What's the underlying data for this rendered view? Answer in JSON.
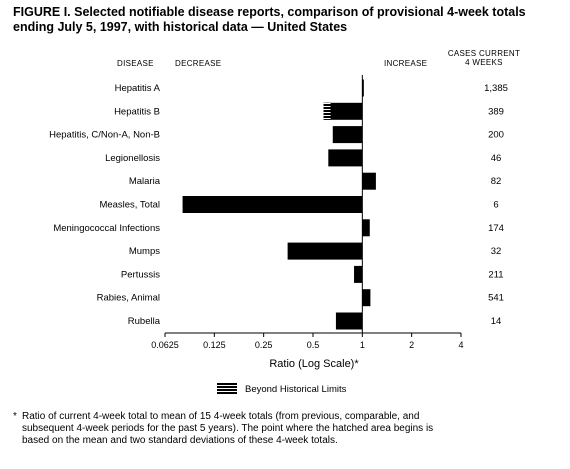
{
  "title": "FIGURE I. Selected notifiable disease reports, comparison of provisional 4-week totals ending July 5, 1997, with historical data — United States",
  "headers": {
    "disease": "DISEASE",
    "decrease": "DECREASE",
    "increase": "INCREASE",
    "cases": "CASES CURRENT\n4 WEEKS"
  },
  "chart_data": {
    "type": "bar",
    "orientation": "horizontal",
    "scale": "log2",
    "xlabel": "Ratio (Log Scale)*",
    "xlim": [
      0.0625,
      4
    ],
    "reference_line": 1,
    "x_ticks": [
      "0.0625",
      "0.125",
      "0.25",
      "0.5",
      "1",
      "2",
      "4"
    ],
    "tick_values": [
      0.0625,
      0.125,
      0.25,
      0.5,
      1,
      2,
      4
    ],
    "categories": [
      "Hepatitis A",
      "Hepatitis B",
      "Hepatitis, C/Non-A, Non-B",
      "Legionellosis",
      "Malaria",
      "Measles, Total",
      "Meningococcal Infections",
      "Mumps",
      "Pertussis",
      "Rabies, Animal",
      "Rubella"
    ],
    "values": [
      1.01,
      0.58,
      0.66,
      0.62,
      1.21,
      0.08,
      1.11,
      0.35,
      0.89,
      1.12,
      0.69
    ],
    "cases": [
      "1,385",
      "389",
      "200",
      "46",
      "82",
      "6",
      "174",
      "32",
      "211",
      "541",
      "14"
    ],
    "beyond_historical_limits": [
      {
        "category": "Hepatitis B",
        "hatch_from": 0.58,
        "hatch_to": 0.64
      }
    ],
    "legend": [
      {
        "label": "Beyond Historical Limits",
        "style": "hatched"
      }
    ],
    "colors": {
      "bar": "#000000",
      "hatch": "#ffffff"
    }
  },
  "footnote": {
    "symbol": "*",
    "lines": [
      "Ratio of current 4-week total to mean of 15 4-week totals (from previous, comparable, and",
      "subsequent 4-week periods for the past 5 years). The point where the hatched area begins is",
      "based on the mean and two standard deviations of these 4-week totals."
    ]
  }
}
